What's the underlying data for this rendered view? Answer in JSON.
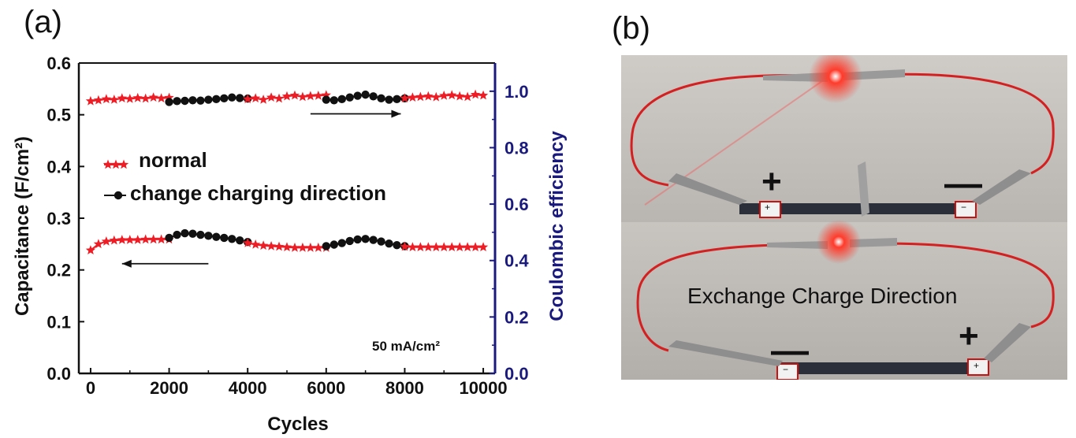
{
  "panel_labels": {
    "a": "(a)",
    "b": "(b)"
  },
  "chart_data": {
    "type": "scatter",
    "xlabel": "Cycles",
    "ylabel": "Capacitance (F/cm²)",
    "y2label": "Coulombic efficiency",
    "xlim": [
      -300,
      10300
    ],
    "ylim": [
      0.0,
      0.6
    ],
    "y2lim": [
      0.0,
      1.1
    ],
    "xticks": [
      "0",
      "2000",
      "4000",
      "6000",
      "8000",
      "10000"
    ],
    "yticks": [
      "0.0",
      "0.1",
      "0.2",
      "0.3",
      "0.4",
      "0.5",
      "0.6"
    ],
    "y2ticks": [
      "0.0",
      "0.2",
      "0.4",
      "0.6",
      "0.8",
      "1.0"
    ],
    "annotation": "50 mA/cm²",
    "legend": [
      {
        "name": "normal",
        "marker": "star",
        "color": "#ee1c24"
      },
      {
        "name": "change charging direction",
        "marker": "circle",
        "color": "#111111"
      }
    ],
    "legend_placement": "center-left",
    "colors": {
      "normal": "#ee1c24",
      "change": "#111111",
      "right_axis": "#1a1a7e"
    },
    "capacitance": {
      "axis": "left",
      "segments": [
        {
          "series": "normal",
          "x": [
            0,
            200,
            400,
            600,
            800,
            1000,
            1200,
            1400,
            1600,
            1800,
            2000
          ],
          "y": [
            0.238,
            0.25,
            0.255,
            0.257,
            0.258,
            0.258,
            0.258,
            0.259,
            0.259,
            0.259,
            0.259
          ]
        },
        {
          "series": "change",
          "x": [
            2000,
            2200,
            2400,
            2600,
            2800,
            3000,
            3200,
            3400,
            3600,
            3800,
            4000
          ],
          "y": [
            0.262,
            0.268,
            0.271,
            0.27,
            0.268,
            0.266,
            0.264,
            0.262,
            0.26,
            0.257,
            0.254
          ]
        },
        {
          "series": "normal",
          "x": [
            4000,
            4200,
            4400,
            4600,
            4800,
            5000,
            5200,
            5400,
            5600,
            5800,
            6000
          ],
          "y": [
            0.252,
            0.249,
            0.247,
            0.246,
            0.245,
            0.244,
            0.243,
            0.243,
            0.243,
            0.243,
            0.243
          ]
        },
        {
          "series": "change",
          "x": [
            6000,
            6200,
            6400,
            6600,
            6800,
            7000,
            7200,
            7400,
            7600,
            7800,
            8000
          ],
          "y": [
            0.246,
            0.249,
            0.252,
            0.256,
            0.259,
            0.26,
            0.258,
            0.255,
            0.251,
            0.248,
            0.246
          ]
        },
        {
          "series": "normal",
          "x": [
            8000,
            8200,
            8400,
            8600,
            8800,
            9000,
            9200,
            9400,
            9600,
            9800,
            10000
          ],
          "y": [
            0.245,
            0.244,
            0.244,
            0.244,
            0.244,
            0.244,
            0.244,
            0.244,
            0.244,
            0.244,
            0.244
          ]
        }
      ]
    },
    "coulombic_efficiency": {
      "axis": "right",
      "segments": [
        {
          "series": "normal",
          "x": [
            0,
            200,
            400,
            600,
            800,
            1000,
            1200,
            1400,
            1600,
            1800,
            2000
          ],
          "y": [
            0.965,
            0.968,
            0.972,
            0.97,
            0.975,
            0.973,
            0.976,
            0.974,
            0.978,
            0.975,
            0.977
          ]
        },
        {
          "series": "change",
          "x": [
            2000,
            2200,
            2400,
            2600,
            2800,
            3000,
            3200,
            3400,
            3600,
            3800,
            4000
          ],
          "y": [
            0.962,
            0.965,
            0.966,
            0.968,
            0.967,
            0.97,
            0.972,
            0.975,
            0.978,
            0.976,
            0.974
          ]
        },
        {
          "series": "normal",
          "x": [
            4000,
            4200,
            4400,
            4600,
            4800,
            5000,
            5200,
            5400,
            5600,
            5800,
            6000
          ],
          "y": [
            0.972,
            0.975,
            0.97,
            0.978,
            0.974,
            0.982,
            0.985,
            0.98,
            0.983,
            0.984,
            0.986
          ]
        },
        {
          "series": "change",
          "x": [
            6000,
            6200,
            6400,
            6600,
            6800,
            7000,
            7200,
            7400,
            7600,
            7800,
            8000
          ],
          "y": [
            0.97,
            0.968,
            0.972,
            0.978,
            0.984,
            0.988,
            0.982,
            0.975,
            0.97,
            0.972,
            0.975
          ]
        },
        {
          "series": "normal",
          "x": [
            8000,
            8200,
            8400,
            8600,
            8800,
            9000,
            9200,
            9400,
            9600,
            9800,
            10000
          ],
          "y": [
            0.975,
            0.978,
            0.98,
            0.982,
            0.979,
            0.984,
            0.986,
            0.982,
            0.98,
            0.988,
            0.985
          ]
        }
      ]
    },
    "arrows": [
      {
        "points_to": "right",
        "axis": "right",
        "x_from": 5600,
        "x_to": 7900,
        "y": 0.92
      },
      {
        "points_to": "left",
        "axis": "left",
        "x_from": 3000,
        "x_to": 800,
        "y": 0.212
      }
    ]
  },
  "photo": {
    "top_caption_plus": "+",
    "top_caption_minus": "—",
    "bottom_caption": "Exchange Charge Direction",
    "bottom_caption_minus": "—",
    "bottom_caption_plus": "+",
    "terminal_plus": "+",
    "terminal_minus": "−"
  }
}
